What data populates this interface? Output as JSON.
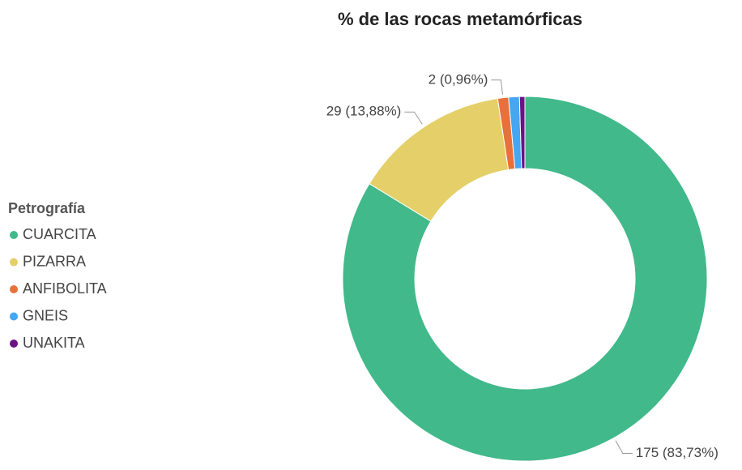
{
  "chart_data": {
    "type": "donut",
    "title": "% de las rocas metamórficas",
    "legend_title": "Petrografía",
    "legend": "left",
    "categories": [
      "CUARCITA",
      "PIZARRA",
      "ANFIBOLITA",
      "GNEIS",
      "UNAKITA"
    ],
    "values": [
      175,
      29,
      2,
      2,
      1
    ],
    "value_labels": [
      "175 (83,73%)",
      "29 (13,88%)",
      "2 (0,96%)",
      null,
      null
    ],
    "colors": [
      "#41b98a",
      "#e5cf68",
      "#e8703a",
      "#45a6f2",
      "#6a1385"
    ]
  }
}
